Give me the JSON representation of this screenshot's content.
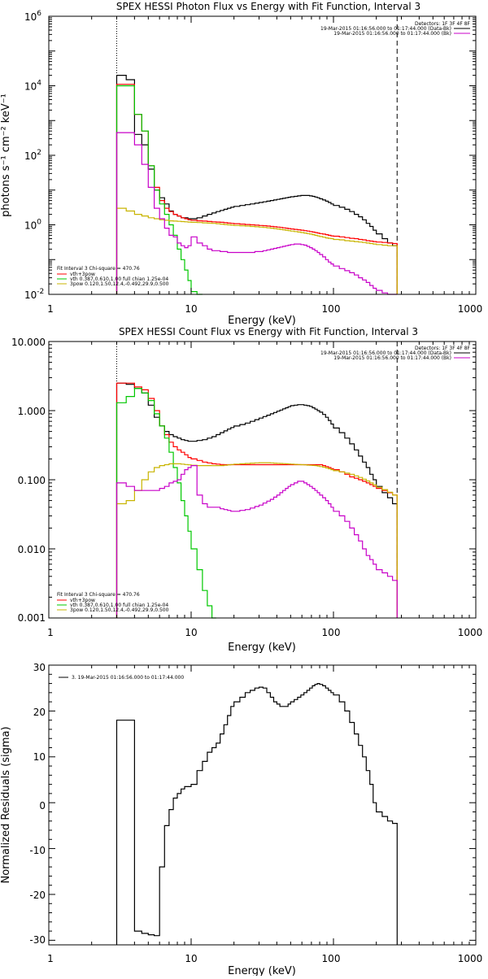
{
  "chart_data": [
    {
      "type": "line",
      "title": "SPEX HESSI Photon Flux vs Energy with Fit Function, Interval 3",
      "xlabel": "Energy (keV)",
      "ylabel": "photons s⁻¹ cm⁻² keV⁻¹",
      "xscale": "log",
      "yscale": "log",
      "xlim": [
        1,
        1000
      ],
      "ylim": [
        0.01,
        1000000
      ],
      "xticklabels": [
        "1",
        "10",
        "100",
        "1000"
      ],
      "yticks": [
        {
          "value": 0.01,
          "base": "10",
          "exp": "-2"
        },
        {
          "value": 1,
          "base": "10",
          "exp": "0"
        },
        {
          "value": 100,
          "base": "10",
          "exp": "2"
        },
        {
          "value": 10000,
          "base": "10",
          "exp": "4"
        },
        {
          "value": 1000000,
          "base": "10",
          "exp": "6"
        }
      ],
      "vlines": [
        {
          "x": 3,
          "style": "dotted",
          "color": "#000000"
        },
        {
          "x": 280,
          "style": "dashed",
          "color": "#000000"
        }
      ],
      "legend_top": [
        "Detectors: 1F 3F 4F 8F",
        "19-Mar-2015 01:16:56.000 to 01:17:44.000 (Data-Bk)",
        "19-Mar-2015 01:16:56.000 to 01:17:44.000 (Bk)"
      ],
      "legend_top_colors": [
        "",
        "#000000",
        "#c800c8"
      ],
      "legend_bottom": [
        "Fit Interval 3   Chi-square = 470.76",
        "vth+3pow",
        "vth 0.387,0.610,1.00  full chian 1.25e-04",
        "3pow 0.120,1.50,12.4,-0.492,29.9,0.500"
      ],
      "legend_bottom_colors": [
        "",
        "#ff0000",
        "#00c800",
        "#c8b400"
      ],
      "edges": [
        3,
        3.5,
        4,
        4.5,
        5,
        5.5,
        6,
        6.5,
        7,
        7.5,
        8,
        8.5,
        9,
        9.5,
        10,
        11,
        12,
        13,
        14,
        15,
        16,
        17,
        18,
        19,
        20,
        22,
        24,
        26,
        28,
        30,
        32,
        34,
        36,
        38,
        40,
        42,
        44,
        46,
        48,
        50,
        53,
        56,
        59,
        62,
        65,
        68,
        71,
        74,
        77,
        80,
        84,
        88,
        92,
        96,
        100,
        110,
        120,
        130,
        140,
        150,
        160,
        170,
        180,
        190,
        200,
        220,
        240,
        260,
        280
      ],
      "series": [
        {
          "name": "Data-Bk",
          "color": "#000000",
          "values": [
            20000,
            15000,
            400,
            200,
            40,
            10,
            6,
            4,
            2.5,
            2,
            1.8,
            1.6,
            1.6,
            1.5,
            1.5,
            1.6,
            1.8,
            2,
            2.2,
            2.4,
            2.6,
            2.8,
            3,
            3.2,
            3.4,
            3.6,
            3.8,
            4,
            4.2,
            4.4,
            4.6,
            4.8,
            5,
            5.2,
            5.4,
            5.6,
            5.8,
            6,
            6.2,
            6.4,
            6.6,
            6.8,
            7,
            7,
            7,
            6.8,
            6.6,
            6.3,
            6,
            5.6,
            5.2,
            4.8,
            4.4,
            4,
            3.6,
            3.2,
            2.8,
            2.4,
            2,
            1.7,
            1.4,
            1.1,
            0.9,
            0.7,
            0.55,
            0.4,
            0.3,
            0.25
          ]
        },
        {
          "name": "vth+3pow",
          "color": "#ff0000",
          "values": [
            11000,
            11000,
            1500,
            500,
            50,
            12,
            5,
            3,
            2.4,
            2,
            1.8,
            1.6,
            1.5,
            1.4,
            1.35,
            1.3,
            1.28,
            1.25,
            1.22,
            1.2,
            1.18,
            1.15,
            1.12,
            1.1,
            1.08,
            1.05,
            1.02,
            1,
            0.98,
            0.96,
            0.94,
            0.92,
            0.9,
            0.88,
            0.86,
            0.84,
            0.82,
            0.8,
            0.78,
            0.76,
            0.74,
            0.72,
            0.7,
            0.68,
            0.66,
            0.64,
            0.62,
            0.6,
            0.58,
            0.56,
            0.54,
            0.52,
            0.5,
            0.48,
            0.47,
            0.45,
            0.43,
            0.41,
            0.4,
            0.38,
            0.37,
            0.35,
            0.34,
            0.33,
            0.32,
            0.31,
            0.3,
            0.29
          ]
        },
        {
          "name": "vth",
          "color": "#00c800",
          "values": [
            10000,
            10000,
            1500,
            500,
            50,
            10,
            4,
            2,
            1,
            0.5,
            0.2,
            0.1,
            0.05,
            0.025,
            0.012,
            0.005
          ]
        },
        {
          "name": "3pow",
          "color": "#c8b400",
          "values": [
            3,
            2.5,
            2,
            1.8,
            1.6,
            1.5,
            1.4,
            1.35,
            1.3,
            1.28,
            1.26,
            1.24,
            1.22,
            1.2,
            1.18,
            1.16,
            1.14,
            1.12,
            1.1,
            1.08,
            1.05,
            1.02,
            1,
            0.98,
            0.96,
            0.94,
            0.92,
            0.9,
            0.88,
            0.86,
            0.84,
            0.82,
            0.8,
            0.78,
            0.76,
            0.74,
            0.72,
            0.7,
            0.68,
            0.66,
            0.64,
            0.62,
            0.6,
            0.58,
            0.56,
            0.54,
            0.52,
            0.5,
            0.48,
            0.46,
            0.44,
            0.42,
            0.41,
            0.4,
            0.38,
            0.37,
            0.35,
            0.34,
            0.33,
            0.32,
            0.31,
            0.3,
            0.29,
            0.28,
            0.27,
            0.26,
            0.25,
            0.25
          ]
        },
        {
          "name": "Bk",
          "color": "#c800c8",
          "values": [
            450,
            450,
            200,
            55,
            12,
            3,
            1.5,
            0.8,
            0.5,
            0.45,
            0.3,
            0.25,
            0.22,
            0.25,
            0.45,
            0.3,
            0.25,
            0.2,
            0.18,
            0.18,
            0.17,
            0.17,
            0.16,
            0.16,
            0.16,
            0.16,
            0.16,
            0.16,
            0.17,
            0.17,
            0.18,
            0.19,
            0.2,
            0.21,
            0.22,
            0.23,
            0.24,
            0.25,
            0.26,
            0.27,
            0.28,
            0.28,
            0.27,
            0.26,
            0.24,
            0.22,
            0.2,
            0.18,
            0.16,
            0.14,
            0.12,
            0.1,
            0.085,
            0.075,
            0.065,
            0.055,
            0.048,
            0.042,
            0.036,
            0.03,
            0.026,
            0.022,
            0.018,
            0.015,
            0.013,
            0.011,
            0.01,
            0.009
          ]
        }
      ]
    },
    {
      "type": "line",
      "title": "SPEX HESSI Count Flux vs Energy with Fit Function, Interval 3",
      "xlabel": "Energy (keV)",
      "ylabel": "",
      "xscale": "log",
      "yscale": "log",
      "xlim": [
        1,
        1000
      ],
      "ylim": [
        0.001,
        10
      ],
      "xticklabels": [
        "1",
        "10",
        "100",
        "1000"
      ],
      "yticks": [
        {
          "value": 10,
          "label": "10.000"
        },
        {
          "value": 1,
          "label": "1.000"
        },
        {
          "value": 0.1,
          "label": "0.100"
        },
        {
          "value": 0.01,
          "label": "0.010"
        },
        {
          "value": 0.001,
          "label": "0.001"
        }
      ],
      "vlines": [
        {
          "x": 3,
          "style": "dotted",
          "color": "#000000"
        },
        {
          "x": 280,
          "style": "dashed",
          "color": "#000000"
        }
      ],
      "legend_top": [
        "Detectors: 1F 3F 4F 8F",
        "19-Mar-2015 01:16:56.000 to 01:17:44.000 (Data-Bk)",
        "19-Mar-2015 01:16:56.000 to 01:17:44.000 (Bk)"
      ],
      "legend_top_colors": [
        "",
        "#000000",
        "#c800c8"
      ],
      "legend_bottom": [
        "Fit Interval 3   Chi-square = 470.76",
        "vth+3pow",
        "vth 0.387,0.610,1.00  full chian 1.25e-04",
        "3pow 0.120,1.50,12.4,-0.492,29.9,0.500"
      ],
      "legend_bottom_colors": [
        "",
        "#ff0000",
        "#00c800",
        "#c8b400"
      ],
      "edges": [
        3,
        3.5,
        4,
        4.5,
        5,
        5.5,
        6,
        6.5,
        7,
        7.5,
        8,
        8.5,
        9,
        9.5,
        10,
        11,
        12,
        13,
        14,
        15,
        16,
        17,
        18,
        19,
        20,
        22,
        24,
        26,
        28,
        30,
        32,
        34,
        36,
        38,
        40,
        42,
        44,
        46,
        48,
        50,
        53,
        56,
        59,
        62,
        65,
        68,
        71,
        74,
        77,
        80,
        84,
        88,
        92,
        96,
        100,
        110,
        120,
        130,
        140,
        150,
        160,
        170,
        180,
        190,
        200,
        220,
        240,
        260,
        280
      ],
      "series": [
        {
          "name": "Data-Bk",
          "color": "#000000",
          "values": [
            2.5,
            2.4,
            2.1,
            1.8,
            1.2,
            0.8,
            0.6,
            0.5,
            0.45,
            0.42,
            0.4,
            0.38,
            0.37,
            0.36,
            0.36,
            0.37,
            0.38,
            0.4,
            0.42,
            0.45,
            0.48,
            0.51,
            0.54,
            0.57,
            0.6,
            0.63,
            0.66,
            0.7,
            0.74,
            0.78,
            0.82,
            0.86,
            0.9,
            0.94,
            0.98,
            1.02,
            1.06,
            1.1,
            1.14,
            1.18,
            1.2,
            1.22,
            1.22,
            1.2,
            1.18,
            1.15,
            1.1,
            1.05,
            1,
            0.95,
            0.88,
            0.8,
            0.72,
            0.64,
            0.56,
            0.48,
            0.4,
            0.33,
            0.27,
            0.22,
            0.18,
            0.15,
            0.12,
            0.1,
            0.08,
            0.065,
            0.055,
            0.045
          ]
        },
        {
          "name": "vth+3pow",
          "color": "#ff0000",
          "values": [
            2.5,
            2.5,
            2.2,
            2,
            1.5,
            1,
            0.6,
            0.45,
            0.35,
            0.3,
            0.27,
            0.25,
            0.23,
            0.21,
            0.2,
            0.19,
            0.18,
            0.175,
            0.17,
            0.168,
            0.166,
            0.165,
            0.165,
            0.165,
            0.165,
            0.165,
            0.165,
            0.165,
            0.165,
            0.165,
            0.165,
            0.165,
            0.165,
            0.165,
            0.165,
            0.165,
            0.165,
            0.165,
            0.165,
            0.165,
            0.165,
            0.165,
            0.165,
            0.165,
            0.165,
            0.165,
            0.165,
            0.165,
            0.165,
            0.165,
            0.16,
            0.155,
            0.15,
            0.145,
            0.14,
            0.13,
            0.12,
            0.11,
            0.105,
            0.1,
            0.095,
            0.09,
            0.085,
            0.08,
            0.075,
            0.07,
            0.065,
            0.06
          ]
        },
        {
          "name": "vth",
          "color": "#00c800",
          "values": [
            1.3,
            1.6,
            2.1,
            1.8,
            1.4,
            0.9,
            0.6,
            0.4,
            0.25,
            0.15,
            0.09,
            0.05,
            0.03,
            0.018,
            0.01,
            0.005,
            0.0025,
            0.0015,
            0.001
          ]
        },
        {
          "name": "3pow",
          "color": "#c8b400",
          "values": [
            0.045,
            0.05,
            0.07,
            0.1,
            0.13,
            0.15,
            0.16,
            0.165,
            0.17,
            0.17,
            0.17,
            0.168,
            0.166,
            0.164,
            0.162,
            0.16,
            0.16,
            0.16,
            0.16,
            0.16,
            0.16,
            0.162,
            0.164,
            0.166,
            0.168,
            0.17,
            0.172,
            0.174,
            0.175,
            0.176,
            0.176,
            0.176,
            0.175,
            0.174,
            0.173,
            0.172,
            0.171,
            0.17,
            0.169,
            0.168,
            0.167,
            0.166,
            0.165,
            0.164,
            0.163,
            0.162,
            0.161,
            0.16,
            0.158,
            0.155,
            0.152,
            0.148,
            0.144,
            0.14,
            0.135,
            0.13,
            0.125,
            0.12,
            0.114,
            0.108,
            0.102,
            0.096,
            0.09,
            0.084,
            0.078,
            0.072,
            0.066,
            0.06
          ]
        },
        {
          "name": "Bk",
          "color": "#c800c8",
          "values": [
            0.09,
            0.08,
            0.07,
            0.07,
            0.07,
            0.07,
            0.075,
            0.08,
            0.09,
            0.095,
            0.1,
            0.12,
            0.14,
            0.15,
            0.16,
            0.06,
            0.045,
            0.04,
            0.04,
            0.04,
            0.038,
            0.037,
            0.036,
            0.035,
            0.035,
            0.036,
            0.037,
            0.039,
            0.041,
            0.043,
            0.046,
            0.049,
            0.052,
            0.056,
            0.06,
            0.065,
            0.07,
            0.075,
            0.08,
            0.085,
            0.09,
            0.095,
            0.095,
            0.09,
            0.085,
            0.08,
            0.075,
            0.07,
            0.065,
            0.06,
            0.055,
            0.05,
            0.045,
            0.04,
            0.035,
            0.03,
            0.025,
            0.02,
            0.016,
            0.013,
            0.01,
            0.008,
            0.007,
            0.006,
            0.005,
            0.0045,
            0.004,
            0.0035
          ]
        }
      ]
    },
    {
      "type": "line",
      "title": "",
      "xlabel": "Energy (keV)",
      "ylabel": "Normalized Residuals (sigma)",
      "xscale": "log",
      "yscale": "linear",
      "xlim": [
        1,
        1000
      ],
      "ylim": [
        -31,
        30
      ],
      "xticklabels": [
        "1",
        "10",
        "100",
        "1000"
      ],
      "yticks": [
        {
          "value": 30,
          "label": "30"
        },
        {
          "value": 20,
          "label": "20"
        },
        {
          "value": 10,
          "label": "10"
        },
        {
          "value": 0,
          "label": "0"
        },
        {
          "value": -10,
          "label": "-10"
        },
        {
          "value": -20,
          "label": "-20"
        },
        {
          "value": -30,
          "label": "-30"
        }
      ],
      "legend": "3. 19-Mar-2015 01:16:56.000 to 01:17:44.000",
      "edges": [
        3,
        3.5,
        4,
        4.5,
        5,
        5.5,
        6,
        6.5,
        7,
        7.5,
        8,
        8.5,
        9,
        9.5,
        10,
        11,
        12,
        13,
        14,
        15,
        16,
        17,
        18,
        19,
        20,
        22,
        24,
        26,
        28,
        30,
        32,
        34,
        36,
        38,
        40,
        42,
        44,
        46,
        48,
        50,
        53,
        56,
        59,
        62,
        65,
        68,
        71,
        74,
        77,
        80,
        84,
        88,
        92,
        96,
        100,
        110,
        120,
        130,
        140,
        150,
        160,
        170,
        180,
        190,
        200,
        220,
        240,
        260,
        280
      ],
      "series": [
        {
          "name": "3. 19-Mar-2015 01:16:56.000 to 01:17:44.000",
          "color": "#000000",
          "values": [
            18,
            18,
            -28,
            -28.5,
            -28.8,
            -29,
            -14,
            -5,
            -1.5,
            1,
            2,
            3,
            3.5,
            3.5,
            4,
            7,
            9,
            11,
            12,
            13,
            15,
            17,
            19,
            21,
            22,
            23,
            24,
            24.5,
            25,
            25.2,
            25,
            24,
            23,
            22,
            21.5,
            21,
            21,
            21,
            21.5,
            22,
            22.5,
            23,
            23.5,
            24,
            24.5,
            25,
            25.5,
            25.8,
            26,
            25.8,
            25.5,
            25,
            24.5,
            24,
            23.5,
            22,
            20,
            17.5,
            15,
            12.5,
            10,
            7,
            4,
            0,
            -2,
            -3,
            -4,
            -4.5
          ]
        }
      ]
    }
  ]
}
